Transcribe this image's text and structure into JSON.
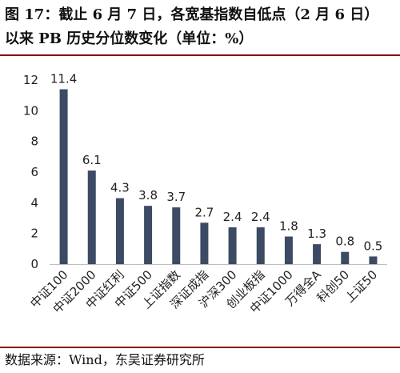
{
  "figure": {
    "title_line1": "图 17：截止 6 月 7 日，各宽基指数自低点（2 月 6 日）",
    "title_line2": "以来 PB 历史分位数变化（单位：%）",
    "source": "数据来源：Wind，东吴证券研究所"
  },
  "colors": {
    "bar": "#3c4b63",
    "accent_rule": "#8a0a0a",
    "axis": "#bfbfbf"
  },
  "chart_data": {
    "type": "bar",
    "categories": [
      "中证100",
      "中证2000",
      "中证红利",
      "中证500",
      "上证指数",
      "深证成指",
      "沪深300",
      "创业板指",
      "中证1000",
      "万得全A",
      "科创50",
      "上证50"
    ],
    "values": [
      11.4,
      6.1,
      4.3,
      3.8,
      3.7,
      2.7,
      2.4,
      2.4,
      1.8,
      1.3,
      0.8,
      0.5
    ],
    "value_labels": [
      "11.4",
      "6.1",
      "4.3",
      "3.8",
      "3.7",
      "2.7",
      "2.4",
      "2.4",
      "1.8",
      "1.3",
      "0.8",
      "0.5"
    ],
    "yticks": [
      "0",
      "2",
      "4",
      "6",
      "8",
      "10",
      "12"
    ],
    "ylim": [
      0,
      12
    ],
    "title": "",
    "xlabel": "",
    "ylabel": "",
    "grid": false,
    "legend": "none"
  }
}
